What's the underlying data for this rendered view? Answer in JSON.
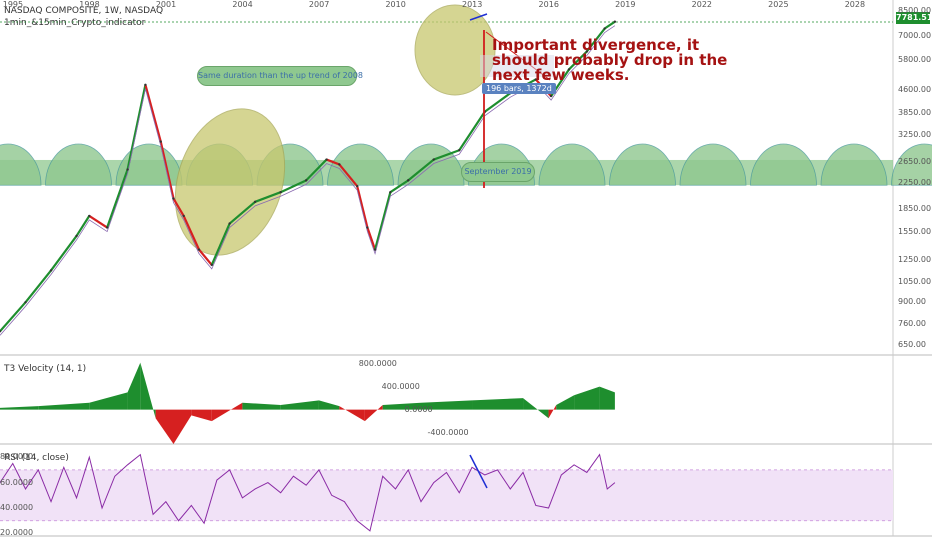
{
  "header": {
    "title": "NASDAQ COMPOSITE, 1W, NASDAQ",
    "indicator": "1min_&15min_Crypto_indicator"
  },
  "price_tag": "7781.51",
  "annotations": {
    "bubble_1": "Same duration than the up trend of 2008",
    "bubble_2": "September 2019",
    "bars_box": "196 bars, 1372d",
    "divergence_note": "Important divergence, it should probably drop in the next few weeks."
  },
  "colors": {
    "up": "#1e8e2e",
    "down": "#d62020",
    "ellipse": "#c8c86e",
    "semicircle": "#8fc88f",
    "rsi": "#8a2ba5",
    "rsi_band": "#f1e2f7",
    "trend": "#1f2fd4"
  },
  "chart_data": [
    {
      "type": "line",
      "title": "NASDAQ COMPOSITE, 1W, NASDAQ",
      "yscale": "log",
      "ylim": [
        600,
        8800
      ],
      "x_ticks": [
        "1995",
        "1998",
        "2001",
        "2004",
        "2007",
        "2010",
        "2013",
        "2016",
        "2019",
        "2022",
        "2025",
        "2028"
      ],
      "y_ticks": [
        8500,
        7000,
        5800,
        4600,
        3850,
        3250,
        2650,
        2250,
        1850,
        1550,
        1250,
        1050,
        900,
        760,
        650
      ],
      "x": [
        1994.5,
        1995.5,
        1996.5,
        1997.5,
        1998.0,
        1998.7,
        1999.5,
        2000.2,
        2000.8,
        2001.3,
        2001.7,
        2002.3,
        2002.8,
        2003.5,
        2004.5,
        2005.5,
        2006.5,
        2007.3,
        2007.8,
        2008.5,
        2008.9,
        2009.2,
        2009.8,
        2010.5,
        2011.5,
        2012.5,
        2013.5,
        2014.5,
        2015.5,
        2016.1,
        2016.8,
        2017.5,
        2018.2,
        2018.6
      ],
      "values": [
        720,
        900,
        1150,
        1500,
        1750,
        1600,
        2500,
        4800,
        3100,
        2000,
        1750,
        1350,
        1200,
        1650,
        1950,
        2100,
        2300,
        2700,
        2600,
        2200,
        1600,
        1350,
        2100,
        2300,
        2700,
        2900,
        3900,
        4500,
        5000,
        4400,
        5400,
        6200,
        7400,
        7800
      ]
    },
    {
      "type": "area",
      "title": "T3 Velocity (14, 1)",
      "y_ticks": [
        800,
        400,
        0,
        -400
      ],
      "ylim": [
        -600,
        900
      ],
      "x": [
        1994.5,
        1996,
        1998,
        1999.5,
        2000.0,
        2000.6,
        2001.3,
        2002.0,
        2002.8,
        2004,
        2005.5,
        2007,
        2007.8,
        2008.8,
        2009.5,
        2011,
        2013,
        2015,
        2016.0,
        2016.3,
        2017,
        2018,
        2018.6
      ],
      "values": [
        30,
        60,
        120,
        300,
        820,
        -150,
        -600,
        -100,
        -200,
        120,
        80,
        160,
        60,
        -200,
        80,
        120,
        160,
        200,
        -150,
        80,
        250,
        400,
        300
      ]
    },
    {
      "type": "line",
      "title": "RSI (14, close)",
      "y_ticks": [
        80,
        60,
        40,
        20
      ],
      "ylim": [
        18,
        88
      ],
      "band": [
        30,
        70
      ],
      "x": [
        1994.5,
        1995,
        1995.5,
        1996,
        1996.5,
        1997,
        1997.5,
        1998,
        1998.5,
        1999,
        1999.5,
        2000,
        2000.5,
        2001,
        2001.5,
        2002,
        2002.5,
        2003,
        2003.5,
        2004,
        2004.5,
        2005,
        2005.5,
        2006,
        2006.5,
        2007,
        2007.5,
        2008,
        2008.5,
        2009,
        2009.5,
        2010,
        2010.5,
        2011,
        2011.5,
        2012,
        2012.5,
        2013,
        2013.5,
        2014,
        2014.5,
        2015,
        2015.5,
        2016,
        2016.5,
        2017,
        2017.5,
        2018,
        2018.3,
        2018.6
      ],
      "values": [
        60,
        75,
        55,
        70,
        45,
        72,
        48,
        80,
        40,
        65,
        74,
        82,
        35,
        45,
        30,
        42,
        28,
        62,
        70,
        48,
        55,
        60,
        52,
        65,
        58,
        70,
        50,
        45,
        30,
        22,
        65,
        55,
        70,
        45,
        60,
        68,
        52,
        72,
        66,
        70,
        55,
        68,
        42,
        40,
        66,
        74,
        68,
        82,
        55,
        60
      ]
    }
  ]
}
